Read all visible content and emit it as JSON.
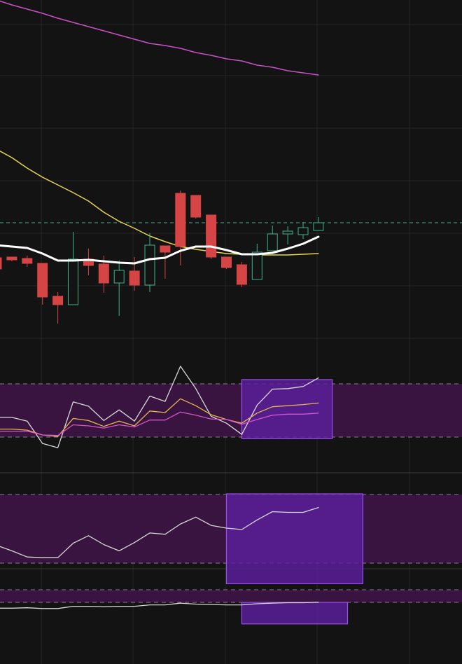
{
  "colors": {
    "background": "#131313",
    "grid": "#262626",
    "up_candle": "#3bb38a",
    "down_candle": "#d64545",
    "ema_fast": "#ffffff",
    "ema_slow": "#e8d44d",
    "ema_long": "#c851c8",
    "level_line": "#3bb38a",
    "band_fill": "#3a1440",
    "highlight_fill": "#5a1f9a",
    "highlight_stroke": "#9a4fe8",
    "band_dash": "#8a7d8f",
    "osc_a": "#d8d8d8",
    "osc_b": "#e0b84a",
    "osc_c": "#d454c9"
  },
  "chart_data": {
    "type": "line",
    "grid": true,
    "title": "",
    "xlabel": "",
    "ylabel": "",
    "price_pane": {
      "ylim": [
        0,
        1000
      ],
      "reference_level": 682,
      "candles": [
        {
          "o": 632,
          "h": 632,
          "l": 616,
          "c": 616
        },
        {
          "o": 633,
          "h": 633,
          "l": 627,
          "c": 629
        },
        {
          "o": 631,
          "h": 635,
          "l": 619,
          "c": 624
        },
        {
          "o": 624,
          "h": 624,
          "l": 565,
          "c": 576
        },
        {
          "o": 577,
          "h": 583,
          "l": 538,
          "c": 565
        },
        {
          "o": 565,
          "h": 669,
          "l": 565,
          "c": 630
        },
        {
          "o": 630,
          "h": 645,
          "l": 607,
          "c": 621
        },
        {
          "o": 623,
          "h": 635,
          "l": 582,
          "c": 596
        },
        {
          "o": 596,
          "h": 628,
          "l": 549,
          "c": 614
        },
        {
          "o": 613,
          "h": 633,
          "l": 585,
          "c": 593
        },
        {
          "o": 593,
          "h": 667,
          "l": 583,
          "c": 650
        },
        {
          "o": 649,
          "h": 648,
          "l": 602,
          "c": 640
        },
        {
          "o": 724,
          "h": 728,
          "l": 621,
          "c": 648
        },
        {
          "o": 721,
          "h": 721,
          "l": 688,
          "c": 690
        },
        {
          "o": 693,
          "h": 693,
          "l": 630,
          "c": 633
        },
        {
          "o": 633,
          "h": 633,
          "l": 616,
          "c": 618
        },
        {
          "o": 622,
          "h": 626,
          "l": 590,
          "c": 594
        },
        {
          "o": 601,
          "h": 652,
          "l": 601,
          "c": 640
        },
        {
          "o": 642,
          "h": 678,
          "l": 642,
          "c": 666
        },
        {
          "o": 666,
          "h": 677,
          "l": 651,
          "c": 670
        },
        {
          "o": 665,
          "h": 683,
          "l": 659,
          "c": 675
        },
        {
          "o": 671,
          "h": 690,
          "l": 671,
          "c": 682
        }
      ],
      "ema_fast": [
        650,
        648,
        646,
        638,
        628,
        628,
        629,
        627,
        625,
        624,
        630,
        632,
        642,
        648,
        648,
        643,
        637,
        637,
        639,
        645,
        652,
        662
      ],
      "ema_slow": [
        787,
        775,
        760,
        747,
        736,
        725,
        713,
        697,
        684,
        674,
        663,
        655,
        648,
        644,
        641,
        638,
        637,
        636,
        636,
        636,
        637,
        638
      ],
      "ema_long": [
        1000,
        993,
        987,
        981,
        974,
        968,
        962,
        956,
        950,
        944,
        938,
        935,
        931,
        925,
        921,
        916,
        913,
        907,
        904,
        899,
        896,
        893
      ]
    },
    "oscillator_1": {
      "ylim": [
        0,
        100
      ],
      "band": [
        0,
        100
      ],
      "series": [
        {
          "values": [
            37,
            37,
            30,
            -12,
            -20,
            66,
            58,
            31,
            51,
            30,
            77,
            67,
            133,
            91,
            39,
            26,
            5,
            60,
            90,
            91,
            95,
            111
          ]
        },
        {
          "values": [
            15,
            15,
            13,
            4,
            1,
            35,
            31,
            20,
            30,
            21,
            49,
            46,
            72,
            59,
            42,
            33,
            26,
            45,
            57,
            59,
            61,
            64
          ]
        },
        {
          "values": [
            11,
            11,
            11,
            4,
            3,
            23,
            21,
            17,
            23,
            19,
            32,
            32,
            47,
            41,
            34,
            33,
            24,
            33,
            41,
            43,
            43,
            45
          ]
        }
      ]
    },
    "oscillator_2": {
      "ylim": [
        0,
        100
      ],
      "band": [
        0,
        100
      ],
      "series": [
        {
          "values": [
            26,
            18,
            9,
            8,
            8,
            29,
            40,
            27,
            18,
            30,
            44,
            42,
            57,
            67,
            55,
            51,
            49,
            63,
            75,
            74,
            74,
            81
          ]
        }
      ]
    },
    "oscillator_3": {
      "ylim": [
        0,
        100
      ],
      "band": [
        0,
        100
      ],
      "series": [
        {
          "values": [
            -46,
            -46,
            -43,
            -49,
            -49,
            -31,
            -31,
            -34,
            -31,
            -31,
            -20,
            -20,
            -6,
            -14,
            -17,
            -20,
            -20,
            -11,
            -6,
            -3,
            -3,
            1
          ]
        }
      ]
    },
    "highlights": [
      {
        "pane": "oscillator_1",
        "bars": [
          16,
          21.9
        ],
        "range": [
          -3,
          108
        ]
      },
      {
        "pane": "oscillator_2",
        "bars": [
          15,
          23.9
        ],
        "range": [
          -30,
          101
        ]
      },
      {
        "pane": "oscillator_3",
        "bars": [
          16,
          22.9
        ],
        "range": [
          -171,
          0
        ]
      }
    ]
  }
}
